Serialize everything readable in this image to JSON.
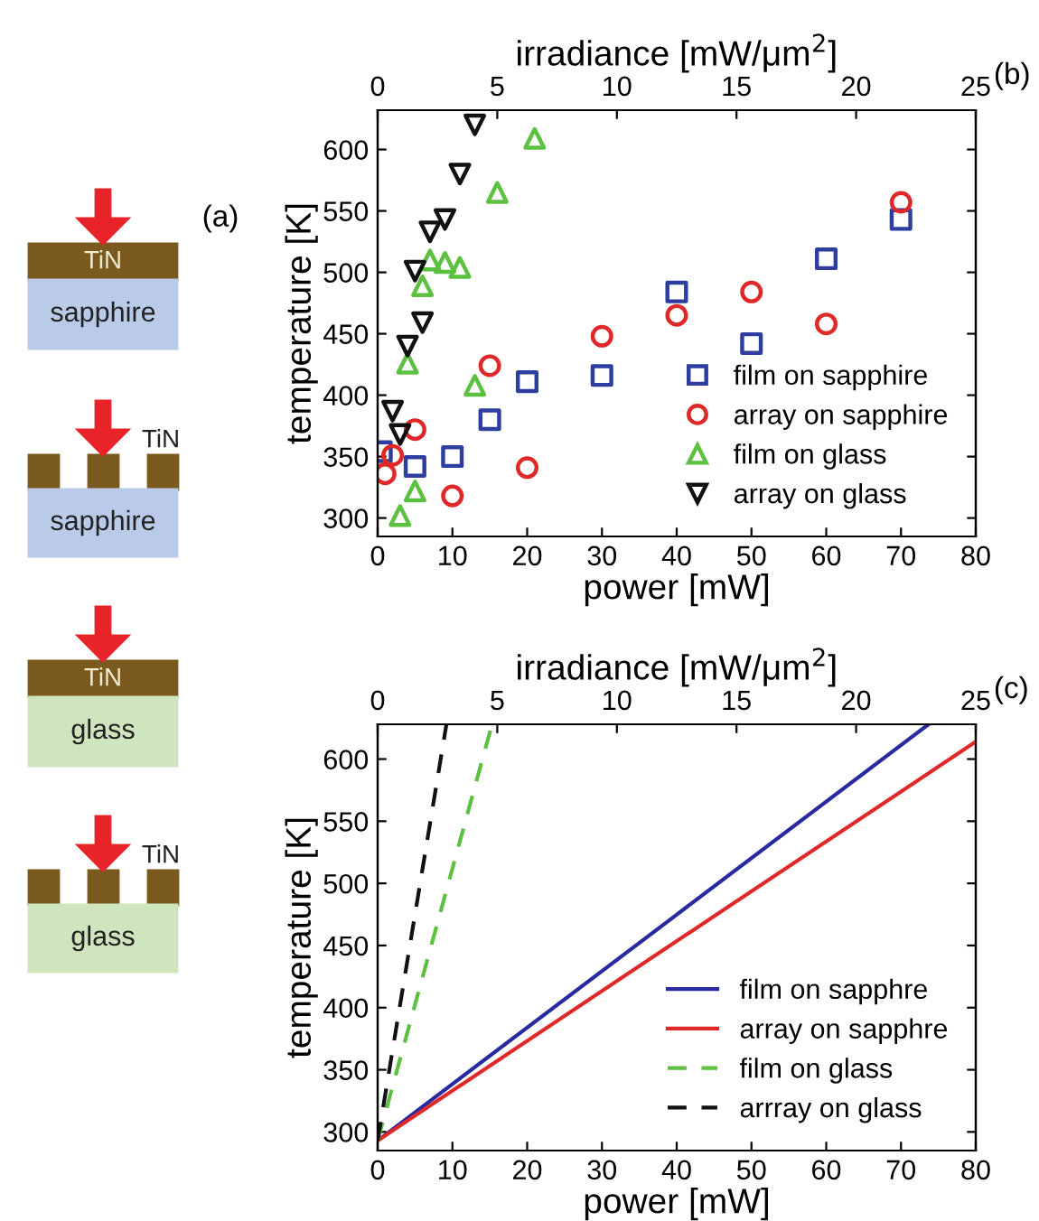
{
  "chart_data": [
    {
      "type": "other",
      "title": "(a)",
      "annotations": [
        "TiN",
        "sapphire",
        "TiN",
        "sapphire",
        "TiN",
        "glass",
        "TiN",
        "glass"
      ]
    },
    {
      "type": "scatter",
      "xlabel": "power [mW]",
      "ylabel": "temperature [K]",
      "x2label": "irradiance [mW/μm$^{2}$]",
      "annotations": [
        "(b)"
      ],
      "xlim": [
        0,
        80
      ],
      "xticks": [
        0,
        10,
        20,
        30,
        40,
        50,
        60,
        70,
        80
      ],
      "x2lim": [
        0,
        25
      ],
      "x2ticks": [
        0,
        5,
        10,
        15,
        20,
        25
      ],
      "ylim": [
        285,
        632
      ],
      "yticks": [
        300,
        350,
        400,
        450,
        500,
        550,
        600
      ],
      "grid": false,
      "legend": "bottom right",
      "series": [
        {
          "name": "film on sapphire",
          "color": "#2e3ea0",
          "marker": "square",
          "x": [
            0.5,
            5,
            10,
            15,
            20,
            30,
            40,
            50,
            60,
            70
          ],
          "values": [
            354,
            342,
            350,
            380,
            411,
            416,
            484,
            442,
            511,
            543
          ]
        },
        {
          "name": "array on sapphire",
          "color": "#e02828",
          "marker": "circle",
          "x": [
            1,
            2,
            5,
            10,
            15,
            20,
            30,
            40,
            50,
            60,
            70
          ],
          "values": [
            336,
            351,
            372,
            318,
            424,
            341,
            448,
            465,
            484,
            458,
            557
          ]
        },
        {
          "name": "film on glass",
          "color": "#5cc040",
          "marker": "triangle",
          "x": [
            3,
            5,
            4,
            6,
            7,
            9,
            11,
            13,
            16,
            21
          ],
          "values": [
            302,
            322,
            426,
            489,
            510,
            508,
            504,
            408,
            565,
            609
          ]
        },
        {
          "name": "array on glass",
          "color": "#111111",
          "marker": "triangle_down",
          "x": [
            2,
            3,
            4,
            5,
            6,
            7,
            9,
            11,
            13
          ],
          "values": [
            387,
            368,
            440,
            501,
            459,
            533,
            543,
            580,
            620
          ]
        }
      ]
    },
    {
      "type": "line",
      "xlabel": "power [mW]",
      "ylabel": "temperature [K]",
      "x2label": "irradiance [mW/μm$^{2}$]",
      "annotations": [
        "(c)"
      ],
      "xlim": [
        0,
        80
      ],
      "xticks": [
        0,
        10,
        20,
        30,
        40,
        50,
        60,
        70,
        80
      ],
      "x2lim": [
        0,
        25
      ],
      "x2ticks": [
        0,
        5,
        10,
        15,
        20,
        25
      ],
      "ylim": [
        285,
        628
      ],
      "yticks": [
        300,
        350,
        400,
        450,
        500,
        550,
        600
      ],
      "grid": false,
      "legend": "bottom right",
      "series": [
        {
          "name": "film on sapphre",
          "color": "#2a2aa0",
          "line_style": "solid",
          "x": [
            0,
            73.7
          ],
          "values": [
            293,
            628
          ]
        },
        {
          "name": "array on sapphre",
          "color": "#e02828",
          "line_style": "solid",
          "x": [
            0,
            80
          ],
          "values": [
            293,
            614
          ]
        },
        {
          "name": "film on glass",
          "color": "#5cc040",
          "line_style": "dashed",
          "x": [
            0,
            15.3
          ],
          "values": [
            293,
            628
          ]
        },
        {
          "name": "arrray on glass",
          "color": "#111111",
          "line_style": "dashed",
          "x": [
            0,
            9.2
          ],
          "values": [
            293,
            628
          ]
        }
      ]
    }
  ]
}
